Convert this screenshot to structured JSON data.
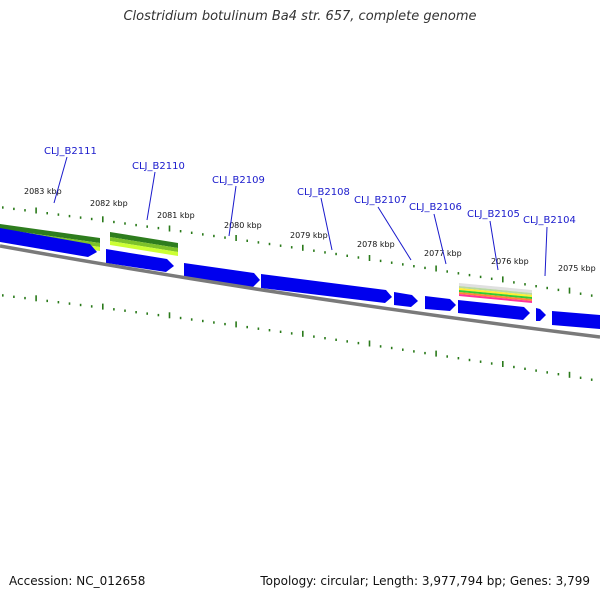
{
  "title": "Clostridium botulinum Ba4 str. 657, complete genome",
  "footer": {
    "accession": "Accession: NC_012658",
    "summary": "Topology: circular; Length: 3,977,794 bp; Genes: 3,799"
  },
  "colors": {
    "gene_arrow": "#0000ee",
    "gene_label": "#1a1acc",
    "tick": "#2a7a1a",
    "backbone": "#7a7a7a",
    "feature_green_dark": "#2e7d1e",
    "feature_green_light": "#ccff33"
  },
  "kbp_labels": [
    "2083 kbp",
    "2082 kbp",
    "2081 kbp",
    "2080 kbp",
    "2079 kbp",
    "2078 kbp",
    "2077 kbp",
    "2076 kbp",
    "2075 kbp"
  ],
  "gene_labels": [
    "CLJ_B2111",
    "CLJ_B2110",
    "CLJ_B2109",
    "CLJ_B2108",
    "CLJ_B2107",
    "CLJ_B2106",
    "CLJ_B2105",
    "CLJ_B2104"
  ]
}
